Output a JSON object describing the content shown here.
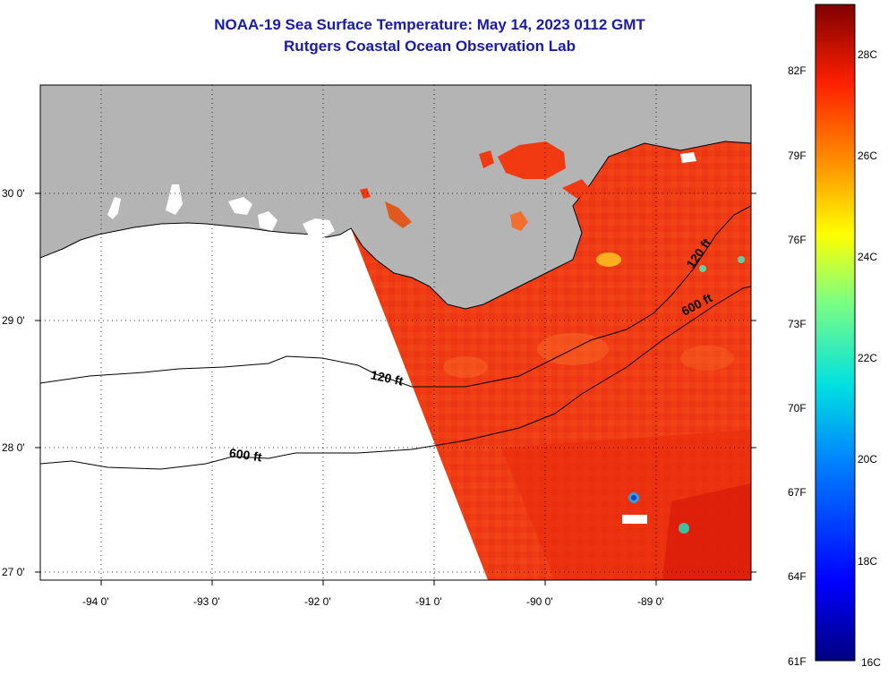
{
  "title": {
    "line1": "NOAA-19 Sea Surface Temperature:  May 14, 2023 0112 GMT",
    "line2": "Rutgers Coastal Ocean Observation Lab"
  },
  "map": {
    "lat_labels": [
      "30 0'",
      "29 0'",
      "28 0'",
      "27 0'"
    ],
    "lon_labels": [
      "-94 0'",
      "-93 0'",
      "-92 0'",
      "-91 0'",
      "-90 0'",
      "-89 0'"
    ],
    "contour_labels": [
      "120 ft",
      "600 ft",
      "120 ft",
      "600 ft"
    ],
    "colors": {
      "land": "#b4b4b4",
      "ocean_data": "#f23a12",
      "no_data": "#ffffff"
    }
  },
  "colorbar": {
    "fahrenheit_labels": [
      "82F",
      "79F",
      "76F",
      "73F",
      "70F",
      "67F",
      "64F",
      "61F"
    ],
    "celsius_labels": [
      "28C",
      "26C",
      "24C",
      "22C",
      "20C",
      "18C",
      "16C"
    ]
  }
}
